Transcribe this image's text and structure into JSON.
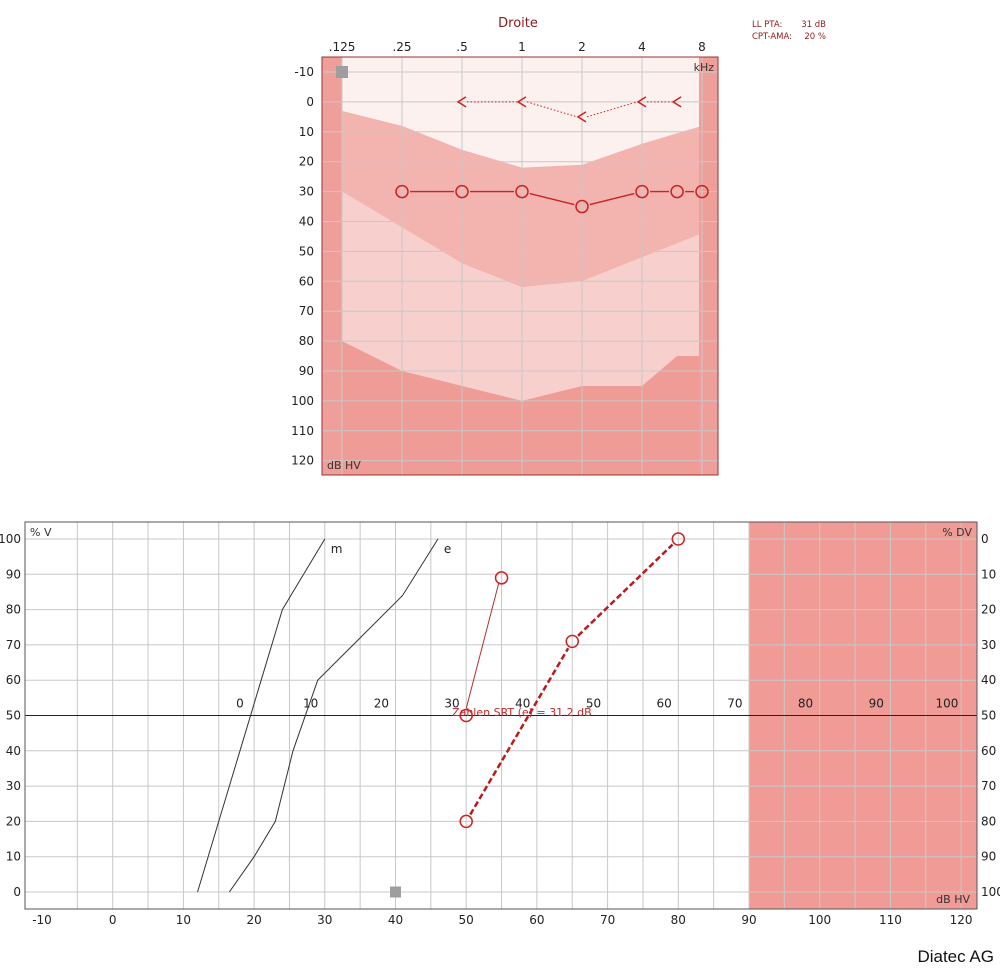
{
  "summary": {
    "pta_label": "LL PTA:",
    "pta_value": "31 dB",
    "cpt_label": "CPT-AMA:",
    "cpt_value": "20 %"
  },
  "brand": "Diatec AG",
  "colors": {
    "accent": "#cc2222",
    "frame_fill": "#ef9f9a",
    "band_light": "#f7cfcc",
    "band_mid": "#f3b4b0",
    "band_dark": "#ef9b96",
    "grid": "#c8c8c8",
    "masking_area": "#f19b96"
  },
  "chart_data": [
    {
      "type": "line",
      "title": "Droite",
      "x_tick_labels": [
        ".125",
        ".25",
        ".5",
        "1",
        "2",
        "4",
        "8"
      ],
      "x_tick_values": [
        0.125,
        0.25,
        0.5,
        1,
        2,
        4,
        8
      ],
      "x_scale": "log2",
      "x_unit": "kHz",
      "ylabel": "dB HV",
      "ylim": [
        -10,
        120
      ],
      "y_inverted": true,
      "y_ticks": [
        -10,
        0,
        10,
        20,
        30,
        40,
        50,
        60,
        70,
        80,
        90,
        100,
        110,
        120
      ],
      "grid": true,
      "series": [
        {
          "symbol": "circle",
          "line": "solid",
          "x": [
            0.25,
            0.5,
            1,
            2,
            4,
            6,
            8
          ],
          "y": [
            30,
            30,
            30,
            35,
            30,
            30,
            30
          ]
        },
        {
          "symbol": "less-than",
          "line": "dotted",
          "x": [
            0.5,
            1,
            2,
            4,
            6
          ],
          "y": [
            0,
            0,
            5,
            0,
            0
          ]
        }
      ],
      "shaded_bands": [
        {
          "name": "upper",
          "x": [
            0.125,
            0.25,
            0.5,
            1,
            2,
            4,
            8
          ],
          "top": [
            3,
            8,
            16,
            22,
            21,
            14,
            8
          ],
          "bottom": [
            30,
            42,
            54,
            62,
            60,
            52,
            44
          ]
        },
        {
          "name": "lower",
          "x": [
            0.125,
            0.25,
            0.5,
            1,
            2,
            4,
            6,
            8
          ],
          "top": [
            80,
            90,
            95,
            100,
            95,
            95,
            85,
            85
          ]
        }
      ],
      "masked_x_edges": [
        0.125,
        8
      ],
      "marker_square": {
        "x": 0.125,
        "y": -10
      }
    },
    {
      "type": "line",
      "xlabel": "dB HV",
      "x_ticks": [
        -10,
        0,
        10,
        20,
        30,
        40,
        50,
        60,
        70,
        80,
        90,
        100,
        110,
        120
      ],
      "xlim": [
        -12,
        122
      ],
      "x_tick_labels_upper": [
        "0",
        "10",
        "20",
        "30",
        "40",
        "50",
        "60",
        "70",
        "80",
        "90",
        "100"
      ],
      "upper_offset": 18,
      "ylabel_left": "% V",
      "ylabel_right": "% DV",
      "ylim": [
        -5,
        105
      ],
      "y_ticks_left": [
        0,
        10,
        20,
        30,
        40,
        50,
        60,
        70,
        80,
        90,
        100
      ],
      "y_ticks_right": [
        "100",
        "90",
        "80",
        "70",
        "60",
        "50",
        "40",
        "30",
        "20",
        "10",
        "0"
      ],
      "grid": true,
      "reference_line_y": 50,
      "masked_x_from": 90,
      "reference_curves": [
        {
          "name": "m",
          "x": [
            12,
            15,
            18,
            21,
            24,
            27,
            30
          ],
          "y": [
            0,
            20,
            40,
            60,
            80,
            90,
            100
          ]
        },
        {
          "name": "e",
          "x": [
            16.5,
            20,
            23,
            25.5,
            29,
            35,
            41,
            46
          ],
          "y": [
            0,
            10,
            20,
            40,
            60,
            72,
            84,
            100
          ]
        }
      ],
      "series": [
        {
          "symbol": "circle",
          "line": "thin",
          "x": [
            50,
            55
          ],
          "y": [
            50,
            89
          ]
        },
        {
          "symbol": "circle",
          "line": "dashed-thick",
          "x": [
            50,
            65,
            80
          ],
          "y": [
            20,
            71,
            100
          ]
        }
      ],
      "annotation": {
        "text": "Zahlen SRT (e) = 31.2 dB",
        "x": 48,
        "y": 51
      },
      "marker_square": {
        "x": 40,
        "y": 0
      }
    }
  ]
}
